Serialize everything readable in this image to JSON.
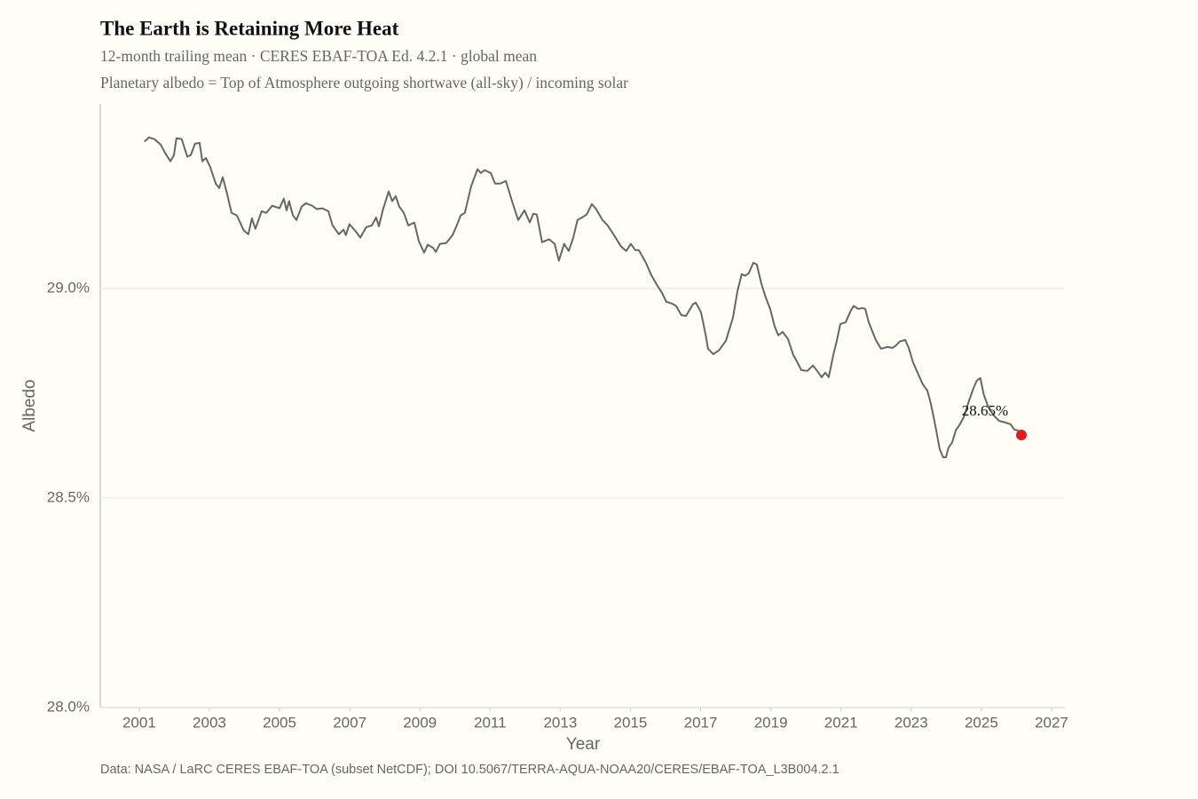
{
  "chart_data": {
    "type": "line",
    "title": "The Earth is Retaining More Heat",
    "subtitle": "12-month trailing mean · CERES EBAF-TOA Ed. 4.2.1 · global mean",
    "subtitle2": "Planetary albedo = Top of Atmosphere outgoing shortwave (all-sky) / incoming solar",
    "xlabel": "Year",
    "ylabel": "Albedo",
    "source": "Data: NASA / LaRC CERES EBAF-TOA (subset NetCDF); DOI 10.5067/TERRA-AQUA-NOAA20/CERES/EBAF-TOA_L3B004.2.1",
    "color": "#666666",
    "x": [
      2001.15,
      2001.28,
      2001.43,
      2001.61,
      2001.73,
      2001.89,
      2001.99,
      2002.06,
      2002.21,
      2002.37,
      2002.47,
      2002.59,
      2002.72,
      2002.8,
      2002.9,
      2003.02,
      2003.18,
      2003.28,
      2003.38,
      2003.5,
      2003.63,
      2003.78,
      2003.98,
      2004.11,
      2004.21,
      2004.31,
      2004.49,
      2004.62,
      2004.79,
      2005.0,
      2005.12,
      2005.2,
      2005.27,
      2005.38,
      2005.48,
      2005.63,
      2005.75,
      2005.93,
      2006.06,
      2006.21,
      2006.39,
      2006.51,
      2006.69,
      2006.82,
      2006.89,
      2006.99,
      2007.15,
      2007.3,
      2007.47,
      2007.63,
      2007.75,
      2007.83,
      2007.95,
      2008.11,
      2008.21,
      2008.31,
      2008.41,
      2008.54,
      2008.67,
      2008.84,
      2008.97,
      2009.12,
      2009.22,
      2009.37,
      2009.45,
      2009.57,
      2009.75,
      2009.93,
      2010.05,
      2010.16,
      2010.28,
      2010.46,
      2010.64,
      2010.74,
      2010.84,
      2011.02,
      2011.14,
      2011.29,
      2011.45,
      2011.65,
      2011.8,
      2011.98,
      2012.13,
      2012.23,
      2012.33,
      2012.48,
      2012.68,
      2012.84,
      2012.96,
      2013.11,
      2013.24,
      2013.37,
      2013.49,
      2013.62,
      2013.75,
      2013.9,
      2014.02,
      2014.2,
      2014.35,
      2014.53,
      2014.73,
      2014.88,
      2015.01,
      2015.14,
      2015.24,
      2015.44,
      2015.59,
      2015.77,
      2015.9,
      2016.02,
      2016.17,
      2016.3,
      2016.45,
      2016.58,
      2016.78,
      2016.86,
      2017.01,
      2017.14,
      2017.21,
      2017.36,
      2017.52,
      2017.72,
      2017.92,
      2018.05,
      2018.17,
      2018.27,
      2018.37,
      2018.5,
      2018.6,
      2018.73,
      2018.86,
      2018.98,
      2019.11,
      2019.21,
      2019.34,
      2019.49,
      2019.64,
      2019.74,
      2019.87,
      2020.04,
      2020.2,
      2020.32,
      2020.45,
      2020.55,
      2020.65,
      2020.78,
      2020.88,
      2020.98,
      2021.13,
      2021.28,
      2021.36,
      2021.49,
      2021.61,
      2021.69,
      2021.79,
      2021.89,
      2021.99,
      2022.14,
      2022.32,
      2022.47,
      2022.57,
      2022.67,
      2022.83,
      2022.93,
      2023.05,
      2023.18,
      2023.33,
      2023.46,
      2023.56,
      2023.69,
      2023.81,
      2023.91,
      2023.99,
      2024.06,
      2024.17,
      2024.27,
      2024.39,
      2024.5,
      2024.62,
      2024.77,
      2024.87,
      2024.97,
      2025.07,
      2025.2,
      2025.35,
      2025.5,
      2025.68,
      2025.83,
      2025.94,
      2026.04,
      2026.14
    ],
    "values": [
      29.35,
      29.36,
      29.356,
      29.343,
      29.324,
      29.303,
      29.318,
      29.358,
      29.356,
      29.314,
      29.318,
      29.345,
      29.347,
      29.303,
      29.311,
      29.29,
      29.25,
      29.239,
      29.265,
      29.227,
      29.18,
      29.174,
      29.138,
      29.129,
      29.167,
      29.142,
      29.184,
      29.18,
      29.197,
      29.191,
      29.214,
      29.186,
      29.208,
      29.174,
      29.163,
      29.195,
      29.203,
      29.197,
      29.189,
      29.191,
      29.184,
      29.15,
      29.129,
      29.14,
      29.127,
      29.153,
      29.138,
      29.121,
      29.146,
      29.15,
      29.169,
      29.148,
      29.189,
      29.231,
      29.208,
      29.22,
      29.195,
      29.18,
      29.15,
      29.157,
      29.112,
      29.085,
      29.104,
      29.097,
      29.087,
      29.106,
      29.108,
      29.127,
      29.15,
      29.174,
      29.18,
      29.244,
      29.284,
      29.275,
      29.282,
      29.275,
      29.25,
      29.25,
      29.256,
      29.201,
      29.163,
      29.186,
      29.157,
      29.178,
      29.176,
      29.11,
      29.117,
      29.106,
      29.066,
      29.106,
      29.089,
      29.121,
      29.163,
      29.169,
      29.176,
      29.201,
      29.189,
      29.163,
      29.15,
      29.127,
      29.1,
      29.089,
      29.106,
      29.091,
      29.091,
      29.061,
      29.032,
      29.006,
      28.989,
      28.968,
      28.964,
      28.958,
      28.936,
      28.934,
      28.962,
      28.966,
      28.943,
      28.89,
      28.856,
      28.843,
      28.852,
      28.875,
      28.93,
      28.994,
      29.034,
      29.03,
      29.036,
      29.061,
      29.057,
      29.011,
      28.977,
      28.951,
      28.909,
      28.888,
      28.896,
      28.879,
      28.841,
      28.826,
      28.805,
      28.803,
      28.816,
      28.803,
      28.788,
      28.799,
      28.788,
      28.841,
      28.875,
      28.915,
      28.919,
      28.947,
      28.958,
      28.951,
      28.953,
      28.951,
      28.919,
      28.898,
      28.877,
      28.856,
      28.86,
      28.858,
      28.864,
      28.873,
      28.877,
      28.858,
      28.824,
      28.799,
      28.771,
      28.756,
      28.725,
      28.672,
      28.617,
      28.597,
      28.597,
      28.619,
      28.633,
      28.661,
      28.676,
      28.693,
      28.725,
      28.761,
      28.78,
      28.786,
      28.746,
      28.716,
      28.697,
      28.684,
      28.68,
      28.676,
      28.663,
      28.661,
      28.65
    ],
    "xlim": [
      1999.89,
      2027.38
    ],
    "ylim": [
      28.0,
      29.44
    ],
    "xticks": [
      2001,
      2003,
      2005,
      2007,
      2009,
      2011,
      2013,
      2015,
      2017,
      2019,
      2021,
      2023,
      2025,
      2027
    ],
    "yticks": [
      {
        "value": 28.0,
        "label": "28.0%"
      },
      {
        "value": 28.5,
        "label": "28.5%"
      },
      {
        "value": 29.0,
        "label": "29.0%"
      }
    ],
    "grid": true,
    "annotations": [
      {
        "x": 2026.14,
        "y": 28.65,
        "label": "28.65%",
        "color": "#e31a1c"
      }
    ]
  }
}
